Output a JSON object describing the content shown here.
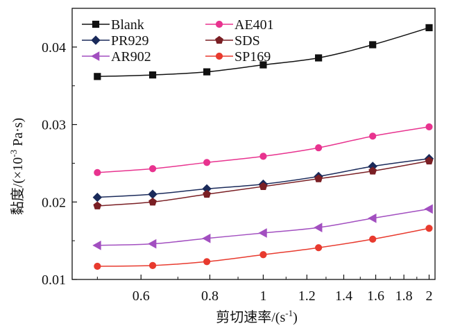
{
  "chart_data": {
    "type": "line",
    "title": "",
    "xlabel": "剪切速率/(s",
    "xlabel_sup": "-1",
    "xlabel_tail": ")",
    "ylabel_main": "黏度/(×10",
    "ylabel_sup": "-3",
    "ylabel_tail": " Pa·s)",
    "xlim": [
      0.45,
      2.05
    ],
    "ylim": [
      0.01,
      0.045
    ],
    "x_scale": "log",
    "x_ticks": [
      {
        "value": 0.6,
        "label": "0.6"
      },
      {
        "value": 0.8,
        "label": "0.8"
      },
      {
        "value": 1.0,
        "label": "1"
      },
      {
        "value": 1.2,
        "label": "1.2"
      },
      {
        "value": 1.4,
        "label": "1.4"
      },
      {
        "value": 1.6,
        "label": "1.6"
      },
      {
        "value": 1.8,
        "label": "1.8"
      },
      {
        "value": 2.0,
        "label": "2"
      }
    ],
    "y_ticks": [
      {
        "value": 0.01,
        "label": "0.01"
      },
      {
        "value": 0.02,
        "label": "0.02"
      },
      {
        "value": 0.03,
        "label": "0.03"
      },
      {
        "value": 0.04,
        "label": "0.04"
      }
    ],
    "grid": false,
    "legend_position": "top-left",
    "x": [
      0.5,
      0.63,
      0.79,
      1.0,
      1.26,
      1.58,
      2.0
    ],
    "series": [
      {
        "name": "Blank",
        "color": "#111111",
        "marker": "square",
        "values": [
          0.0362,
          0.0364,
          0.0368,
          0.0377,
          0.0386,
          0.0403,
          0.0425
        ]
      },
      {
        "name": "AE401",
        "color": "#e8338f",
        "marker": "circle",
        "values": [
          0.0238,
          0.0243,
          0.0251,
          0.0259,
          0.027,
          0.0285,
          0.0297
        ]
      },
      {
        "name": "PR929",
        "color": "#1a2a5a",
        "marker": "diamond",
        "values": [
          0.0206,
          0.021,
          0.0217,
          0.0223,
          0.0233,
          0.0246,
          0.0256
        ]
      },
      {
        "name": "SDS",
        "color": "#7a1f24",
        "marker": "pentagon",
        "values": [
          0.0195,
          0.02,
          0.021,
          0.022,
          0.023,
          0.024,
          0.0253
        ]
      },
      {
        "name": "AR902",
        "color": "#a24fc0",
        "marker": "triangle-left",
        "values": [
          0.0144,
          0.0146,
          0.0153,
          0.016,
          0.0167,
          0.0179,
          0.0191
        ]
      },
      {
        "name": "SP169",
        "color": "#e83a2e",
        "marker": "circle",
        "values": [
          0.0117,
          0.0118,
          0.0123,
          0.0132,
          0.0141,
          0.0152,
          0.0166
        ]
      }
    ]
  }
}
